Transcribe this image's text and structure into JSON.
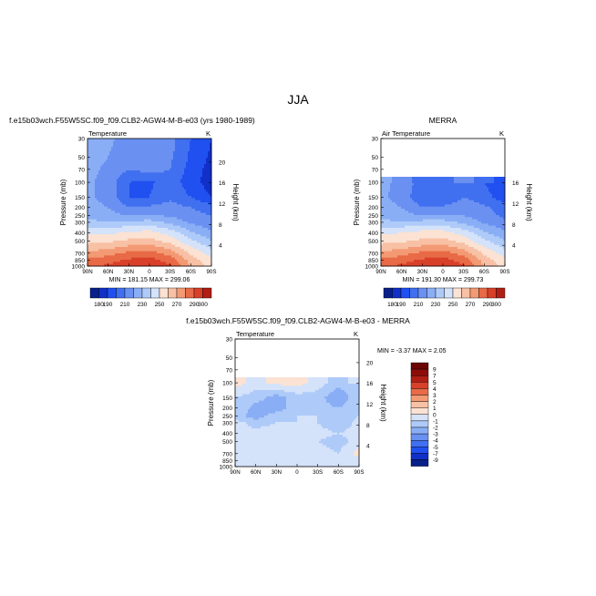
{
  "figure": {
    "main_title": "JJA",
    "bottom_title": "f.e15b03wch.F55W5SC.f09_f09.CLB2-AGW4-M-B-e03 - MERRA"
  },
  "colors": {
    "abs_levels": [
      180,
      190,
      200,
      210,
      220,
      230,
      240,
      250,
      260,
      270,
      280,
      290,
      300
    ],
    "abs_fills": [
      "#08208a",
      "#1030c8",
      "#2050f0",
      "#4070f0",
      "#6a90f2",
      "#8aaef5",
      "#aecaf8",
      "#d4e2fa",
      "#fbe2d2",
      "#f8c0a4",
      "#f39a74",
      "#e86a46",
      "#d8402a",
      "#b01e14"
    ],
    "diff_levels": [
      -9,
      -7,
      -5,
      -4,
      -3,
      -2,
      -1,
      0,
      1,
      2,
      3,
      4,
      5,
      7,
      9
    ],
    "diff_fills": [
      "#08208a",
      "#1030c8",
      "#2050f0",
      "#4070f0",
      "#6a90f2",
      "#8aaef5",
      "#aecaf8",
      "#d4e2fa",
      "#fbe2d2",
      "#f8c0a4",
      "#f39a74",
      "#e86a46",
      "#d8402a",
      "#b01e14",
      "#8c0c08",
      "#6a0604"
    ],
    "missing": "#ffffff"
  },
  "chart_data": [
    {
      "type": "heatmap",
      "title": "f.e15b03wch.F55W5SC.f09_f09.CLB2-AGW4-M-B-e03 (yrs 1980-1989)",
      "left_label": "Temperature",
      "units": "K",
      "ylabel": "Pressure (mb)",
      "ylabel_right": "Height (km)",
      "x_ticks": [
        "90N",
        "60N",
        "30N",
        "0",
        "30S",
        "60S",
        "90S"
      ],
      "y_ticks": [
        "30",
        "50",
        "70",
        "100",
        "150",
        "200",
        "250",
        "300",
        "400",
        "500",
        "700",
        "850",
        "1000"
      ],
      "height_ticks": [
        "20",
        "16",
        "12",
        "8",
        "4"
      ],
      "stats": "MIN = 181.15   MAX = 299.06",
      "colorbar_labels": [
        "180",
        "190",
        "210",
        "230",
        "250",
        "270",
        "290",
        "300"
      ],
      "lat": [
        90,
        60,
        30,
        0,
        -30,
        -60,
        -90
      ],
      "pressure": [
        30,
        50,
        70,
        100,
        150,
        200,
        250,
        300,
        400,
        500,
        700,
        850,
        1000
      ],
      "values": [
        [
          226,
          222,
          216,
          218,
          214,
          200,
          190
        ],
        [
          224,
          220,
          214,
          216,
          212,
          198,
          188
        ],
        [
          223,
          218,
          210,
          214,
          210,
          196,
          186
        ],
        [
          222,
          216,
          200,
          198,
          206,
          194,
          185
        ],
        [
          222,
          216,
          200,
          200,
          208,
          200,
          190
        ],
        [
          224,
          220,
          210,
          212,
          214,
          210,
          204
        ],
        [
          226,
          224,
          220,
          222,
          218,
          214,
          210
        ],
        [
          232,
          232,
          232,
          234,
          228,
          218,
          212
        ],
        [
          248,
          248,
          252,
          254,
          246,
          232,
          222
        ],
        [
          256,
          258,
          262,
          264,
          256,
          242,
          230
        ],
        [
          272,
          276,
          282,
          284,
          276,
          258,
          246
        ],
        [
          282,
          286,
          292,
          294,
          286,
          266,
          252
        ],
        [
          288,
          292,
          298,
          299,
          292,
          270,
          256
        ]
      ]
    },
    {
      "type": "heatmap",
      "title": "MERRA",
      "left_label": "Air Temperature",
      "units": "K",
      "ylabel": "Pressure (mb)",
      "ylabel_right": "Height (km)",
      "x_ticks": [
        "90N",
        "60N",
        "30N",
        "0",
        "30S",
        "60S",
        "90S"
      ],
      "y_ticks": [
        "30",
        "50",
        "70",
        "100",
        "150",
        "200",
        "250",
        "300",
        "400",
        "500",
        "700",
        "850",
        "1000"
      ],
      "height_ticks": [
        "16",
        "12",
        "8",
        "4"
      ],
      "stats": "MIN = 191.30   MAX = 299.73",
      "colorbar_labels": [
        "180",
        "190",
        "210",
        "230",
        "250",
        "270",
        "290",
        "300"
      ],
      "lat": [
        90,
        60,
        30,
        0,
        -30,
        -60,
        -90
      ],
      "pressure": [
        30,
        50,
        70,
        100,
        150,
        200,
        250,
        300,
        400,
        500,
        700,
        850,
        1000
      ],
      "values": [
        [
          null,
          null,
          null,
          null,
          null,
          null,
          null
        ],
        [
          null,
          null,
          null,
          null,
          null,
          null,
          null
        ],
        [
          null,
          null,
          null,
          null,
          null,
          null,
          null
        ],
        [
          224,
          216,
          206,
          204,
          210,
          200,
          192
        ],
        [
          222,
          216,
          202,
          200,
          210,
          204,
          194
        ],
        [
          224,
          220,
          210,
          212,
          216,
          212,
          204
        ],
        [
          226,
          224,
          220,
          222,
          220,
          214,
          208
        ],
        [
          232,
          232,
          234,
          234,
          228,
          218,
          212
        ],
        [
          248,
          250,
          254,
          254,
          246,
          232,
          222
        ],
        [
          256,
          258,
          262,
          264,
          256,
          242,
          230
        ],
        [
          272,
          276,
          282,
          284,
          276,
          258,
          246
        ],
        [
          282,
          286,
          292,
          294,
          286,
          266,
          252
        ],
        [
          288,
          292,
          298,
          299,
          292,
          270,
          256
        ]
      ]
    },
    {
      "type": "heatmap",
      "title": "f.e15b03wch.F55W5SC.f09_f09.CLB2-AGW4-M-B-e03 - MERRA",
      "left_label": "Temperature",
      "units": "K",
      "ylabel": "Pressure (mb)",
      "ylabel_right": "Height (km)",
      "x_ticks": [
        "90N",
        "60N",
        "30N",
        "0",
        "30S",
        "60S",
        "90S"
      ],
      "y_ticks": [
        "30",
        "50",
        "70",
        "100",
        "150",
        "200",
        "250",
        "300",
        "400",
        "500",
        "700",
        "850",
        "1000"
      ],
      "height_ticks": [
        "20",
        "16",
        "12",
        "8",
        "4"
      ],
      "stats": "MIN = -3.37   MAX =   2.05",
      "colorbar_labels": [
        "9",
        "7",
        "5",
        "4",
        "3",
        "2",
        "1",
        "0",
        "-1",
        "-2",
        "-3",
        "-4",
        "-5",
        "-7",
        "-9"
      ],
      "lat": [
        90,
        60,
        30,
        0,
        -30,
        -60,
        -90
      ],
      "pressure": [
        30,
        50,
        70,
        100,
        150,
        200,
        250,
        300,
        400,
        500,
        700,
        850,
        1000
      ],
      "values": [
        [
          null,
          null,
          null,
          null,
          null,
          null,
          null
        ],
        [
          null,
          null,
          null,
          null,
          null,
          null,
          null
        ],
        [
          null,
          null,
          null,
          null,
          null,
          null,
          null
        ],
        [
          0.5,
          -0.5,
          0.3,
          0.5,
          -0.5,
          -1.5,
          -1
        ],
        [
          -1,
          -1.5,
          -2.5,
          -1.5,
          -1.5,
          -3,
          -1
        ],
        [
          -1,
          -2.5,
          -2.5,
          -1.5,
          -1.5,
          -2,
          -1
        ],
        [
          -1.5,
          -2.5,
          -1.5,
          -1,
          -1,
          -1.5,
          -1
        ],
        [
          -0.5,
          -1.5,
          -1,
          -1,
          -1,
          -2,
          -0.5
        ],
        [
          -1,
          -0.5,
          -0.5,
          -0.5,
          -0.5,
          -1,
          -0.5
        ],
        [
          -0.5,
          -1,
          -1,
          -1,
          -1,
          -1.5,
          -0.5
        ],
        [
          -0.5,
          -0.5,
          -1,
          -0.5,
          -0.5,
          -1,
          0.5
        ],
        [
          -0.5,
          -0.5,
          -0.5,
          -0.5,
          -0.5,
          -1,
          -0.5
        ],
        [
          -0.5,
          -0.5,
          -0.5,
          -0.5,
          -0.5,
          -0.5,
          -0.5
        ]
      ]
    }
  ]
}
